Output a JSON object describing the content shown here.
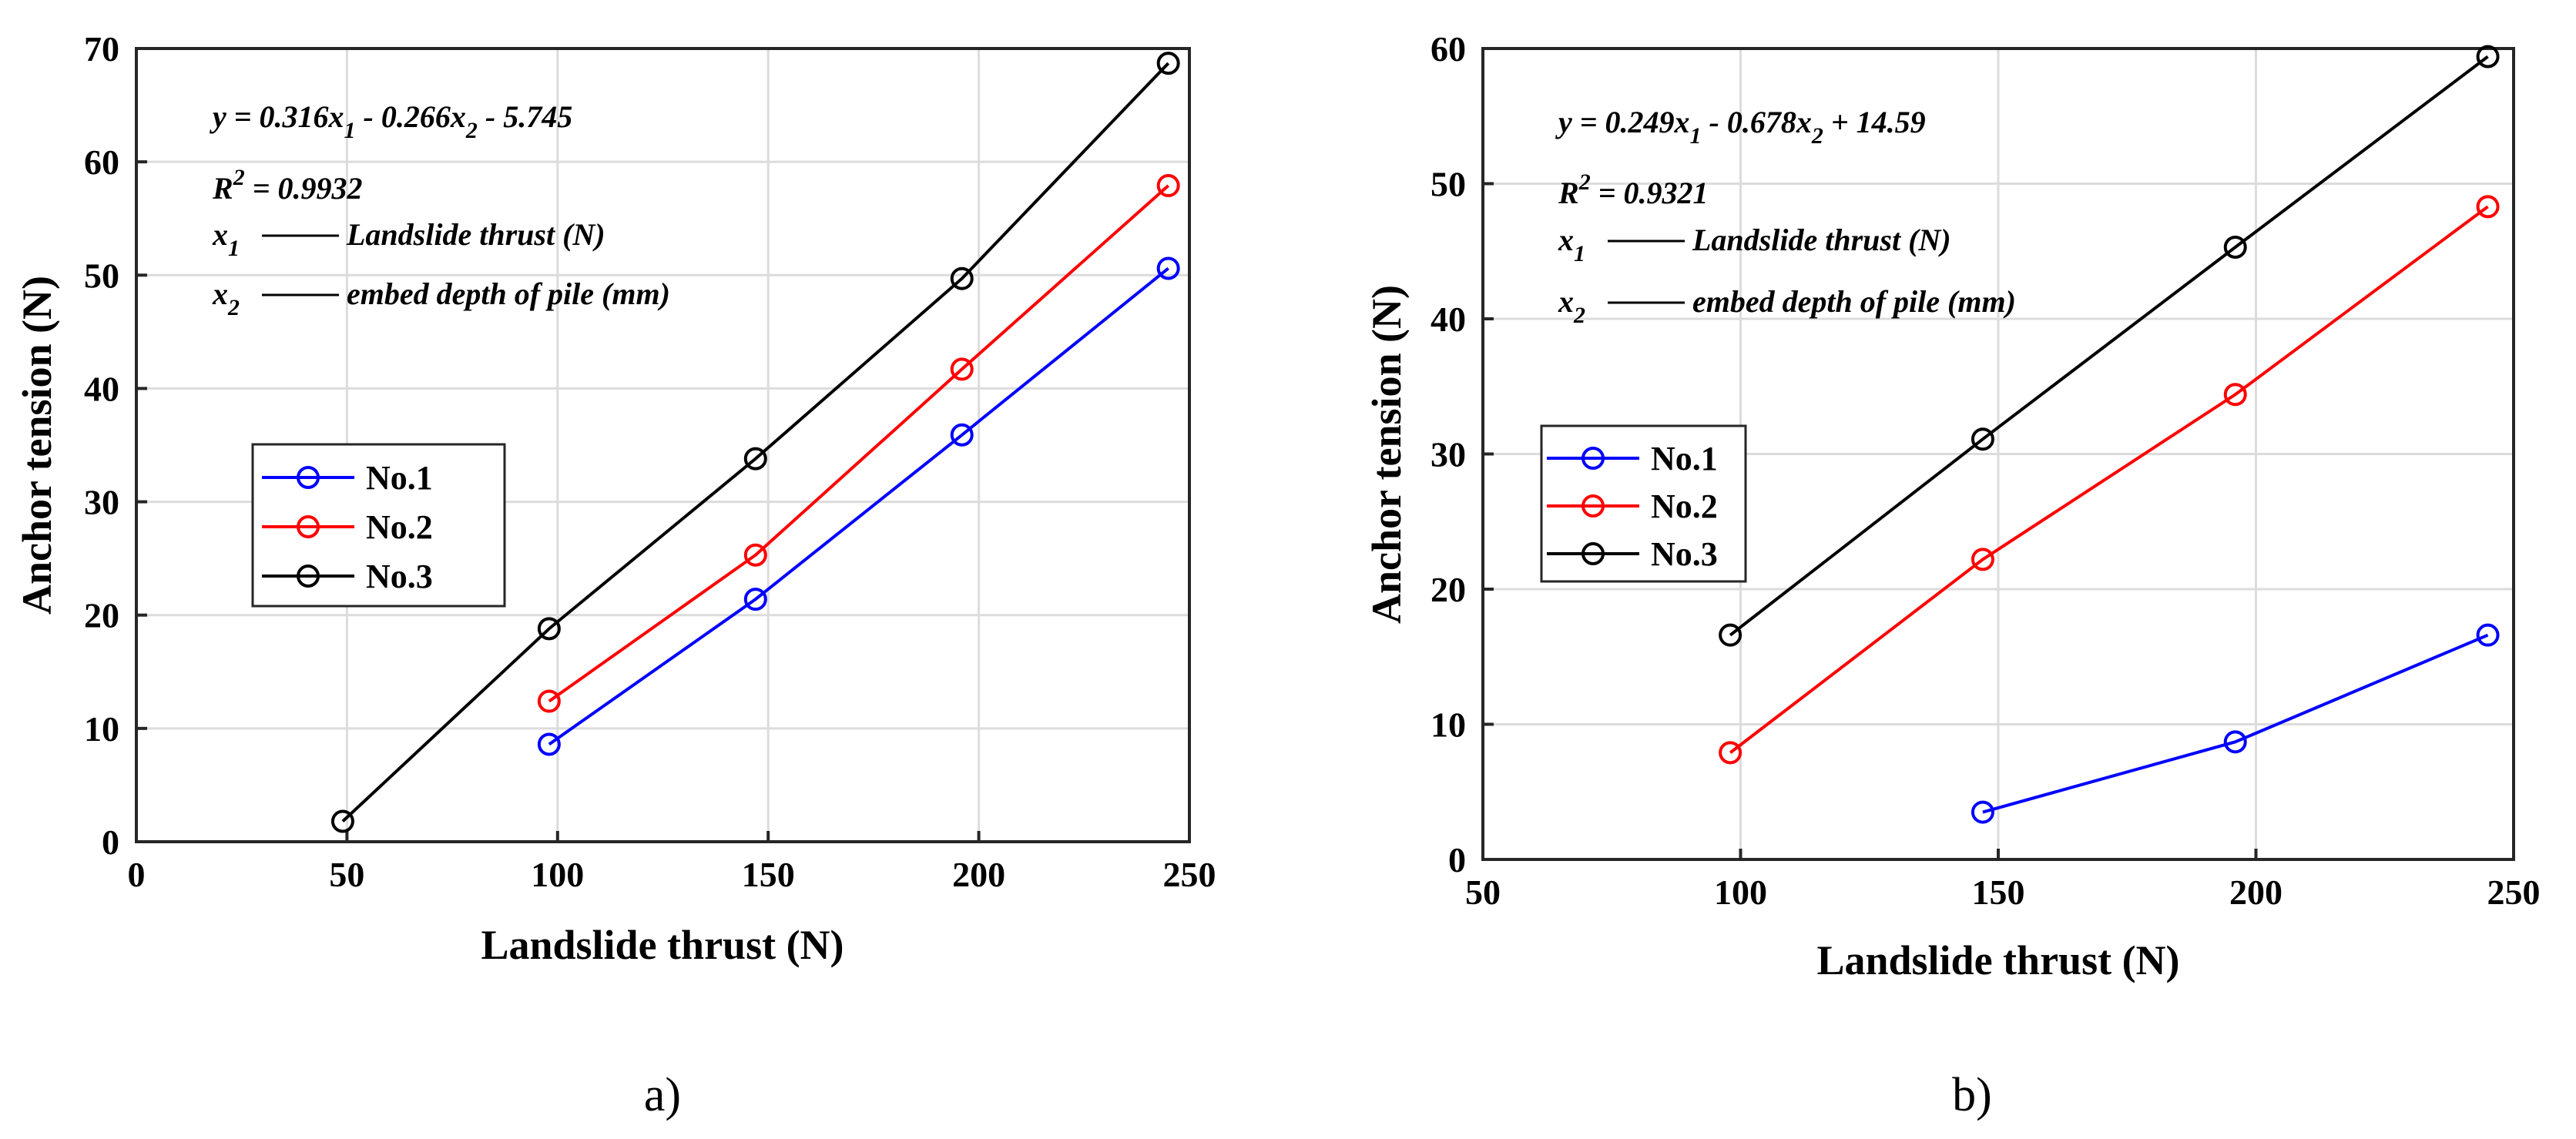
{
  "chart_data": [
    {
      "type": "line",
      "panel": "a",
      "caption": "a)",
      "xlabel": "Landslide thrust (N)",
      "ylabel": "Anchor tension (N)",
      "xlim": [
        0,
        250
      ],
      "ylim": [
        0,
        70
      ],
      "xticks": [
        0,
        50,
        100,
        150,
        200,
        250
      ],
      "yticks": [
        0,
        10,
        20,
        30,
        40,
        50,
        60,
        70
      ],
      "grid": true,
      "legend_position": "middle-left",
      "series": [
        {
          "name": "No.1",
          "color": "#0000ff",
          "x": [
            98,
            147,
            196,
            245
          ],
          "y": [
            8.6,
            21.4,
            35.9,
            50.6
          ]
        },
        {
          "name": "No.2",
          "color": "#ff0000",
          "x": [
            98,
            147,
            196,
            245
          ],
          "y": [
            12.4,
            25.3,
            41.7,
            57.9
          ]
        },
        {
          "name": "No.3",
          "color": "#000000",
          "x": [
            49,
            98,
            147,
            196,
            245
          ],
          "y": [
            1.8,
            18.8,
            33.8,
            49.7,
            68.7
          ]
        }
      ],
      "annotation": {
        "equation": {
          "a": "y = 0.316x",
          "b": " - 0.266x",
          "c": " - 5.745"
        },
        "r2": {
          "a": "R",
          "b": " = 0.9932"
        },
        "x1_desc": "Landslide thrust (N)",
        "x2_desc": "embed depth of pile (mm)"
      }
    },
    {
      "type": "line",
      "panel": "b",
      "caption": "b)",
      "xlabel": "Landslide thrust (N)",
      "ylabel": "Anchor tension (N)",
      "xlim": [
        50,
        250
      ],
      "ylim": [
        0,
        60
      ],
      "xticks": [
        50,
        100,
        150,
        200,
        250
      ],
      "yticks": [
        0,
        10,
        20,
        30,
        40,
        50,
        60
      ],
      "grid": true,
      "legend_position": "middle-left",
      "series": [
        {
          "name": "No.1",
          "color": "#0000ff",
          "x": [
            147,
            196,
            245
          ],
          "y": [
            3.5,
            8.7,
            16.6
          ]
        },
        {
          "name": "No.2",
          "color": "#ff0000",
          "x": [
            98,
            147,
            196,
            245
          ],
          "y": [
            7.9,
            22.2,
            34.4,
            48.3
          ]
        },
        {
          "name": "No.3",
          "color": "#000000",
          "x": [
            98,
            147,
            196,
            245
          ],
          "y": [
            16.6,
            31.1,
            45.3,
            59.4
          ]
        }
      ],
      "annotation": {
        "equation": {
          "a": "y = 0.249x",
          "b": " - 0.678x",
          "c": " + 14.59"
        },
        "r2": {
          "a": "R",
          "b": " = 0.9321"
        },
        "x1_desc": "Landslide thrust (N)",
        "x2_desc": "embed depth of pile (mm)"
      }
    }
  ],
  "common": {
    "sub1": "1",
    "sub2": "2",
    "sup2": "2",
    "x_var": "x",
    "desc_rule": "——"
  }
}
